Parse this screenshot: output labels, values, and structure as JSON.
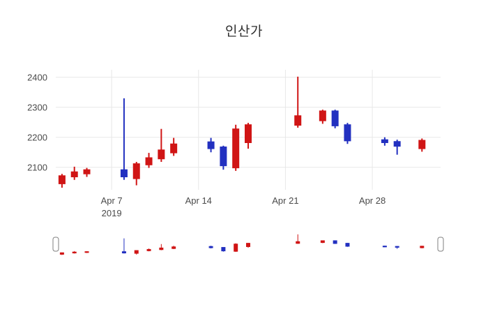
{
  "chart_data": {
    "type": "candlestick",
    "title": "인산가",
    "x": [
      "2019-04-03",
      "2019-04-04",
      "2019-04-05",
      "2019-04-08",
      "2019-04-09",
      "2019-04-10",
      "2019-04-11",
      "2019-04-12",
      "2019-04-15",
      "2019-04-16",
      "2019-04-17",
      "2019-04-18",
      "2019-04-22",
      "2019-04-24",
      "2019-04-25",
      "2019-04-26",
      "2019-04-29",
      "2019-04-30",
      "2019-05-02"
    ],
    "open": [
      2045,
      2068,
      2078,
      2092,
      2062,
      2108,
      2128,
      2148,
      2185,
      2168,
      2098,
      2182,
      2240,
      2255,
      2288,
      2242,
      2192,
      2186,
      2162
    ],
    "close": [
      2072,
      2085,
      2092,
      2068,
      2112,
      2132,
      2158,
      2178,
      2162,
      2105,
      2228,
      2242,
      2272,
      2288,
      2238,
      2188,
      2182,
      2170,
      2190
    ],
    "high": [
      2078,
      2102,
      2098,
      2330,
      2118,
      2148,
      2228,
      2198,
      2198,
      2172,
      2242,
      2248,
      2402,
      2292,
      2292,
      2248,
      2200,
      2192,
      2196
    ],
    "low": [
      2032,
      2058,
      2068,
      2058,
      2040,
      2098,
      2118,
      2138,
      2150,
      2092,
      2088,
      2162,
      2232,
      2245,
      2230,
      2178,
      2172,
      2142,
      2152
    ],
    "increasing_color": "#d01515",
    "decreasing_color": "#2230c0",
    "grid_color": "#e8e8e8",
    "text_color": "#4a4a4a",
    "grid": true,
    "legend": false,
    "rangeslider": true,
    "y_ticks": [
      2100,
      2200,
      2300,
      2400
    ],
    "y_range": [
      2025,
      2425
    ],
    "x_range": [
      "2019-04-02T12:00:00Z",
      "2019-05-03T12:00:00Z"
    ],
    "x_ticks": [
      {
        "date": "2019-04-07",
        "label": "Apr 7",
        "sublabel": "2019"
      },
      {
        "date": "2019-04-14",
        "label": "Apr 14"
      },
      {
        "date": "2019-04-21",
        "label": "Apr 21"
      },
      {
        "date": "2019-04-28",
        "label": "Apr 28"
      }
    ]
  }
}
